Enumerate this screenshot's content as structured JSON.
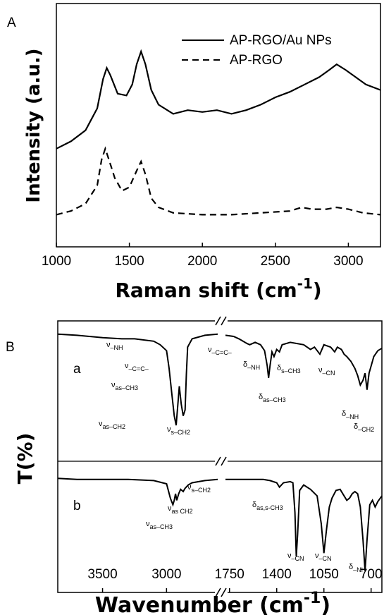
{
  "chart_data": [
    {
      "panel": "A",
      "type": "line",
      "xlabel": "Raman shift (cm",
      "xlabel_sup": "-1",
      "xlabel_close": ")",
      "ylabel": "Intensity (a.u.)",
      "xlim": [
        1000,
        3220
      ],
      "xticks": [
        1000,
        1500,
        2000,
        2500,
        3000
      ],
      "legend_position": "top-right",
      "series": [
        {
          "name": "AP-RGO/Au NPs",
          "style": "solid",
          "x": [
            1000,
            1100,
            1200,
            1280,
            1320,
            1345,
            1370,
            1420,
            1480,
            1520,
            1550,
            1580,
            1610,
            1650,
            1700,
            1800,
            1900,
            2000,
            2100,
            2200,
            2300,
            2400,
            2500,
            2600,
            2700,
            2800,
            2870,
            2920,
            2980,
            3050,
            3120,
            3220
          ],
          "y": [
            0.42,
            0.46,
            0.52,
            0.64,
            0.8,
            0.86,
            0.82,
            0.72,
            0.71,
            0.77,
            0.88,
            0.95,
            0.88,
            0.74,
            0.66,
            0.61,
            0.63,
            0.62,
            0.63,
            0.61,
            0.63,
            0.66,
            0.7,
            0.73,
            0.77,
            0.81,
            0.85,
            0.88,
            0.85,
            0.81,
            0.77,
            0.74
          ]
        },
        {
          "name": "AP-RGO",
          "style": "dashed",
          "x": [
            1000,
            1100,
            1200,
            1280,
            1310,
            1335,
            1360,
            1400,
            1450,
            1500,
            1550,
            1580,
            1610,
            1650,
            1700,
            1800,
            2000,
            2200,
            2400,
            2600,
            2680,
            2750,
            2850,
            2920,
            3000,
            3100,
            3220
          ],
          "y": [
            0.06,
            0.08,
            0.12,
            0.22,
            0.36,
            0.42,
            0.36,
            0.26,
            0.19,
            0.21,
            0.3,
            0.35,
            0.28,
            0.15,
            0.1,
            0.07,
            0.06,
            0.06,
            0.07,
            0.08,
            0.1,
            0.09,
            0.09,
            0.1,
            0.09,
            0.07,
            0.06
          ]
        }
      ]
    },
    {
      "panel": "B",
      "type": "line",
      "xlabel": "Wavenumber (cm",
      "xlabel_sup": "-1",
      "xlabel_close": ")",
      "ylabel": "T(%)",
      "axis_break": true,
      "left_xlim": [
        3850,
        2600
      ],
      "left_xticks": [
        3500,
        3000
      ],
      "right_xlim": [
        1780,
        620
      ],
      "right_xticks": [
        1750,
        1400,
        1050,
        700
      ],
      "curve_a": {
        "label": "a",
        "left_x": [
          3850,
          3700,
          3500,
          3350,
          3250,
          3100,
          3050,
          3000,
          2980,
          2960,
          2940,
          2925,
          2915,
          2900,
          2885,
          2870,
          2855,
          2845,
          2835,
          2800,
          2700,
          2600
        ],
        "left_y": [
          0.99,
          0.98,
          0.96,
          0.95,
          0.95,
          0.93,
          0.9,
          0.85,
          0.7,
          0.5,
          0.3,
          0.22,
          0.35,
          0.55,
          0.4,
          0.3,
          0.35,
          0.65,
          0.88,
          0.95,
          0.98,
          0.99
        ],
        "right_x": [
          1780,
          1720,
          1680,
          1650,
          1620,
          1600,
          1560,
          1520,
          1490,
          1470,
          1460,
          1450,
          1435,
          1420,
          1400,
          1380,
          1360,
          1300,
          1200,
          1150,
          1120,
          1080,
          1050,
          1000,
          970,
          950,
          920,
          900,
          880,
          850,
          820,
          800,
          780,
          760,
          745,
          730,
          715,
          700,
          680,
          650,
          620
        ],
        "right_y": [
          0.98,
          0.97,
          0.95,
          0.93,
          0.91,
          0.9,
          0.92,
          0.9,
          0.85,
          0.72,
          0.62,
          0.72,
          0.84,
          0.8,
          0.86,
          0.84,
          0.9,
          0.92,
          0.9,
          0.86,
          0.88,
          0.82,
          0.9,
          0.88,
          0.84,
          0.88,
          0.86,
          0.82,
          0.8,
          0.76,
          0.7,
          0.64,
          0.56,
          0.6,
          0.66,
          0.52,
          0.66,
          0.72,
          0.8,
          0.85,
          0.87
        ]
      },
      "curve_b": {
        "label": "b",
        "left_x": [
          3850,
          3700,
          3500,
          3300,
          3100,
          3000,
          2970,
          2950,
          2940,
          2930,
          2920,
          2905,
          2890,
          2870,
          2855,
          2830,
          2800,
          2700,
          2600
        ],
        "left_y": [
          0.96,
          0.95,
          0.95,
          0.95,
          0.94,
          0.91,
          0.78,
          0.72,
          0.76,
          0.82,
          0.76,
          0.82,
          0.86,
          0.84,
          0.87,
          0.9,
          0.92,
          0.94,
          0.95
        ],
        "right_x": [
          1780,
          1700,
          1600,
          1500,
          1450,
          1400,
          1380,
          1350,
          1300,
          1280,
          1265,
          1255,
          1245,
          1230,
          1200,
          1150,
          1100,
          1070,
          1050,
          1030,
          1010,
          990,
          960,
          930,
          900,
          880,
          860,
          840,
          820,
          800,
          780,
          760,
          745,
          730,
          710,
          690,
          670,
          650,
          620
        ],
        "right_y": [
          0.95,
          0.95,
          0.95,
          0.95,
          0.94,
          0.92,
          0.88,
          0.92,
          0.93,
          0.92,
          0.65,
          0.25,
          0.45,
          0.85,
          0.9,
          0.86,
          0.8,
          0.55,
          0.28,
          0.5,
          0.7,
          0.78,
          0.85,
          0.86,
          0.8,
          0.76,
          0.78,
          0.82,
          0.84,
          0.82,
          0.7,
          0.4,
          0.12,
          0.4,
          0.72,
          0.76,
          0.7,
          0.75,
          0.8
        ]
      }
    }
  ],
  "panel_labels": [
    "A",
    "B"
  ],
  "annotations_a": [
    {
      "base": "ν",
      "sub": "–NH",
      "x": 151,
      "y": 492
    },
    {
      "base": "ν",
      "sub": "–C=C–",
      "x": 177,
      "y": 522
    },
    {
      "base": "ν",
      "sub": "as–CH3",
      "x": 158,
      "y": 549
    },
    {
      "base": "ν",
      "sub": "as–CH2",
      "x": 140,
      "y": 604
    },
    {
      "base": "ν",
      "sub": "s–CH2",
      "x": 237,
      "y": 612
    },
    {
      "base": "ν",
      "sub": "–C=C–",
      "x": 295,
      "y": 499
    },
    {
      "base": "δ",
      "sub": "–NH",
      "x": 345,
      "y": 520
    },
    {
      "base": "δ",
      "sub": "s–CH3",
      "x": 393,
      "y": 525
    },
    {
      "base": "δ",
      "sub": "as–CH3",
      "x": 367,
      "y": 566
    },
    {
      "base": "ν",
      "sub": "–CN",
      "x": 452,
      "y": 528
    },
    {
      "base": "δ",
      "sub": "–NH",
      "x": 485,
      "y": 590
    },
    {
      "base": "δ",
      "sub": "–CH2",
      "x": 502,
      "y": 608
    }
  ],
  "annotations_b": [
    {
      "base": "ν",
      "sub": "s–CH2",
      "x": 266,
      "y": 694
    },
    {
      "base": "ν",
      "sub": "as  CH2",
      "x": 238,
      "y": 724
    },
    {
      "base": "ν",
      "sub": "as–CH3",
      "x": 207,
      "y": 746
    },
    {
      "base": "δ",
      "sub": "as,s-CH3",
      "x": 358,
      "y": 719
    },
    {
      "base": "ν",
      "sub": "–CN",
      "x": 408,
      "y": 791
    },
    {
      "base": "ν",
      "sub": "–CN",
      "x": 447,
      "y": 791
    },
    {
      "base": "δ",
      "sub": "–NH",
      "x": 495,
      "y": 807
    }
  ]
}
